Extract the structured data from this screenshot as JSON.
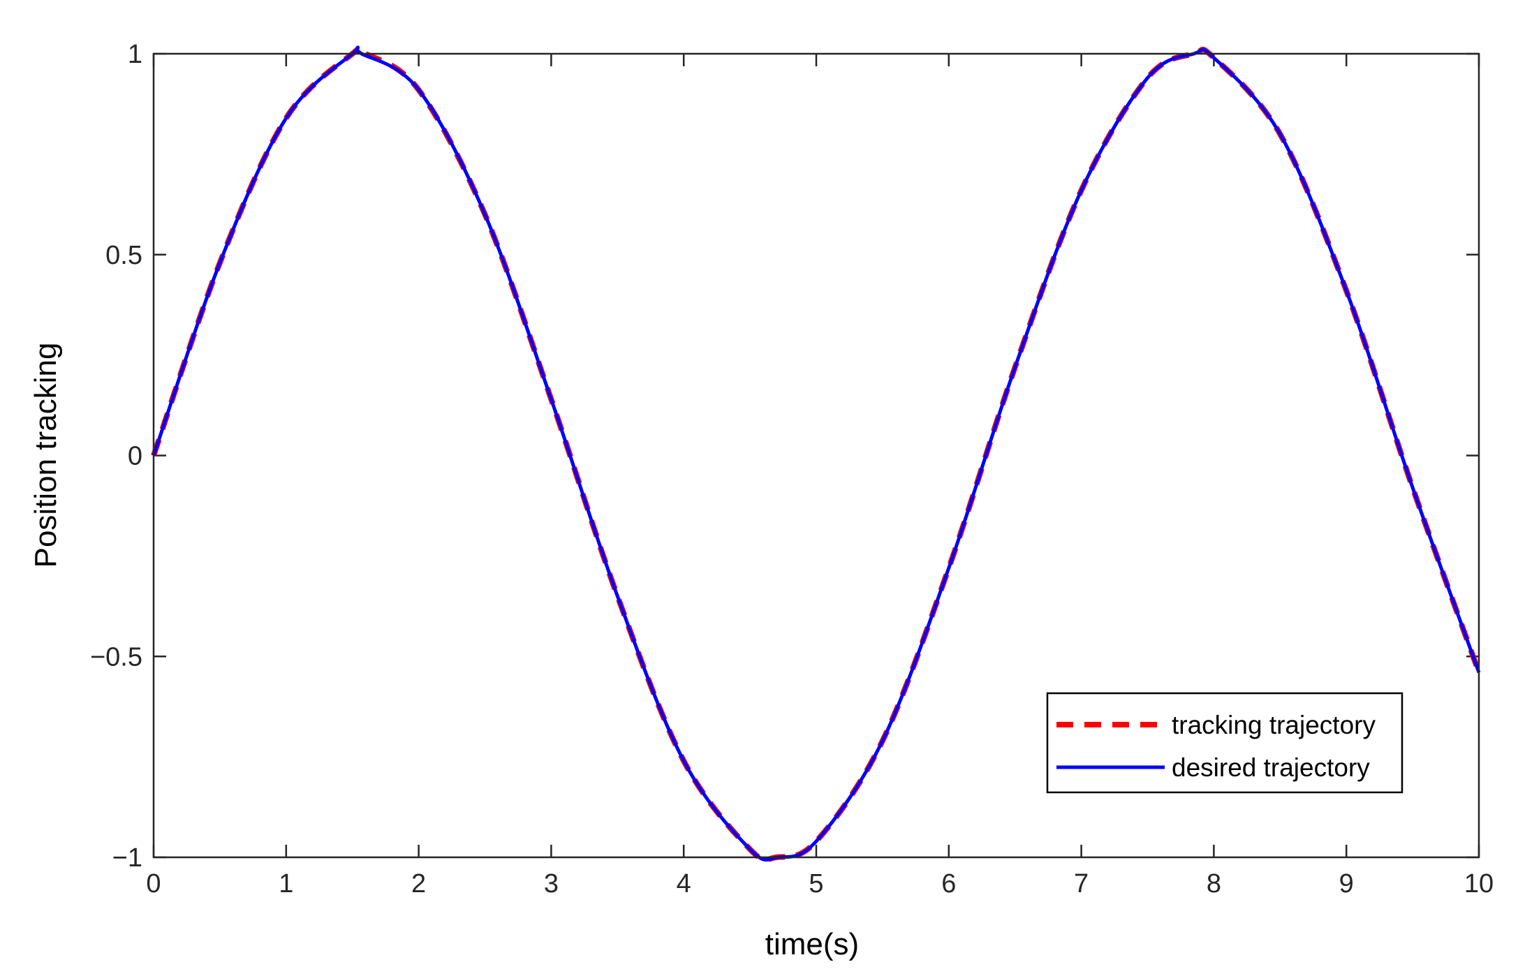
{
  "chart_data": {
    "type": "line",
    "title": "",
    "xlabel": "time(s)",
    "ylabel": "Position tracking",
    "xlim": [
      0,
      10
    ],
    "ylim": [
      -1,
      1
    ],
    "xticks": [
      0,
      1,
      2,
      3,
      4,
      5,
      6,
      7,
      8,
      9,
      10
    ],
    "xtick_labels": [
      "0",
      "1",
      "2",
      "3",
      "4",
      "5",
      "6",
      "7",
      "8",
      "9",
      "10"
    ],
    "yticks": [
      -1,
      -0.5,
      0,
      0.5,
      1
    ],
    "ytick_labels": [
      "−1",
      "−0.5",
      "0",
      "0.5",
      "1"
    ],
    "grid": false,
    "legend_position": "bottom-right",
    "series": [
      {
        "name": "tracking trajectory",
        "color": "#ff0000",
        "style": "dashed",
        "x": [
          0,
          0.5,
          1,
          1.5,
          1.6,
          2,
          2.5,
          3,
          3.5,
          4,
          4.5,
          4.7,
          5,
          5.5,
          6,
          6.5,
          7,
          7.5,
          7.85,
          8,
          8.5,
          9,
          9.5,
          10
        ],
        "y": [
          0,
          0.48,
          0.84,
          1.0,
          1.0,
          0.91,
          0.6,
          0.14,
          -0.35,
          -0.76,
          -0.98,
          -1.0,
          -0.96,
          -0.71,
          -0.28,
          0.22,
          0.66,
          0.94,
          1.0,
          0.99,
          0.8,
          0.41,
          -0.08,
          -0.54
        ]
      },
      {
        "name": "desired trajectory",
        "color": "#0000ff",
        "style": "solid",
        "x": [
          0,
          0.5,
          1,
          1.5,
          1.57,
          2,
          2.5,
          3,
          3.5,
          4,
          4.5,
          4.71,
          5,
          5.5,
          6,
          6.5,
          7,
          7.5,
          7.85,
          8,
          8.5,
          9,
          9.5,
          10
        ],
        "y": [
          0,
          0.48,
          0.84,
          1.0,
          1.0,
          0.91,
          0.6,
          0.14,
          -0.35,
          -0.76,
          -0.98,
          -1.0,
          -0.96,
          -0.71,
          -0.28,
          0.22,
          0.66,
          0.94,
          1.0,
          0.99,
          0.8,
          0.41,
          -0.08,
          -0.54
        ]
      }
    ]
  }
}
